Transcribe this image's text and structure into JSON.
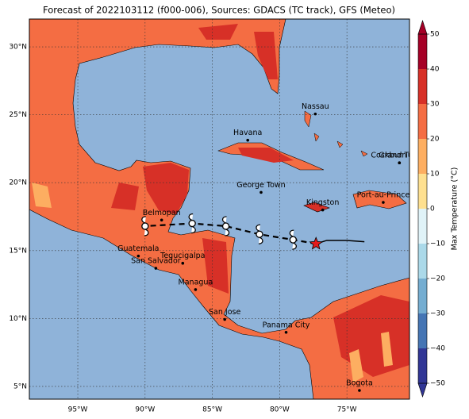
{
  "map": {
    "title": "Forecast of 2022103112 (f000-006), Sources: GDACS (TC track), GFS (Meteo)",
    "xlim": [
      -98.6,
      -70.35
    ],
    "ylim": [
      4.06,
      32.05
    ],
    "xticks": [
      {
        "value": -95,
        "label": "95°W"
      },
      {
        "value": -90,
        "label": "90°W"
      },
      {
        "value": -85,
        "label": "85°W"
      },
      {
        "value": -80,
        "label": "80°W"
      },
      {
        "value": -75,
        "label": "75°W"
      }
    ],
    "yticks": [
      {
        "value": 30,
        "label": "30°N"
      },
      {
        "value": 25,
        "label": "25°N"
      },
      {
        "value": 20,
        "label": "20°N"
      },
      {
        "value": 15,
        "label": "15°N"
      },
      {
        "value": 10,
        "label": "10°N"
      },
      {
        "value": 5,
        "label": "5°N"
      }
    ],
    "cities": [
      {
        "name": "Nassau",
        "lon": -77.35,
        "lat": 25.06
      },
      {
        "name": "Havana",
        "lon": -82.37,
        "lat": 23.13
      },
      {
        "name": "George Town",
        "lon": -81.38,
        "lat": 19.29
      },
      {
        "name": "Kingston",
        "lon": -76.8,
        "lat": 17.99
      },
      {
        "name": "Port-au-Prince",
        "lon": -72.3,
        "lat": 18.55
      },
      {
        "name": "Cockburn Town",
        "lon": -71.1,
        "lat": 21.46
      },
      {
        "name": "Grand Turk",
        "lon": -71.1,
        "lat": 21.46
      },
      {
        "name": "Belmopan",
        "lon": -88.77,
        "lat": 17.25
      },
      {
        "name": "Guatemala",
        "lon": -90.5,
        "lat": 14.6
      },
      {
        "name": "San Salvador",
        "lon": -89.2,
        "lat": 13.7
      },
      {
        "name": "Tegucigalpa",
        "lon": -87.2,
        "lat": 14.07
      },
      {
        "name": "Managua",
        "lon": -86.25,
        "lat": 12.13
      },
      {
        "name": "San Jose",
        "lon": -84.08,
        "lat": 9.93
      },
      {
        "name": "Panama City",
        "lon": -79.52,
        "lat": 8.98
      },
      {
        "name": "Bogota",
        "lon": -74.07,
        "lat": 4.7
      }
    ],
    "track": {
      "past": {
        "lon": [
          -77.3,
          -76.5,
          -75.0,
          -73.7
        ],
        "lat": [
          15.5,
          15.75,
          15.75,
          15.65
        ]
      },
      "forecast": {
        "lon": [
          -77.3,
          -79.0,
          -81.5,
          -84.0,
          -86.5,
          -90.0
        ],
        "lat": [
          15.5,
          15.8,
          16.2,
          16.8,
          17.0,
          16.8
        ]
      }
    },
    "colorbar": {
      "label": "Max Temperature (°C)",
      "lim": [
        -50,
        50
      ],
      "ticks": [
        {
          "value": 50,
          "label": "50"
        },
        {
          "value": 40,
          "label": "40"
        },
        {
          "value": 30,
          "label": "30"
        },
        {
          "value": 20,
          "label": "20"
        },
        {
          "value": 10,
          "label": "10"
        },
        {
          "value": 0,
          "label": "0"
        },
        {
          "value": -10,
          "label": "−10"
        },
        {
          "value": -20,
          "label": "−20"
        },
        {
          "value": -30,
          "label": "−30"
        },
        {
          "value": -40,
          "label": "−40"
        },
        {
          "value": -50,
          "label": "−50"
        }
      ],
      "colors": [
        "#a50026",
        "#d73027",
        "#f46d43",
        "#fdae61",
        "#fee090",
        "#e0f3f8",
        "#abd9e9",
        "#74add1",
        "#4575b4",
        "#313695"
      ]
    }
  }
}
